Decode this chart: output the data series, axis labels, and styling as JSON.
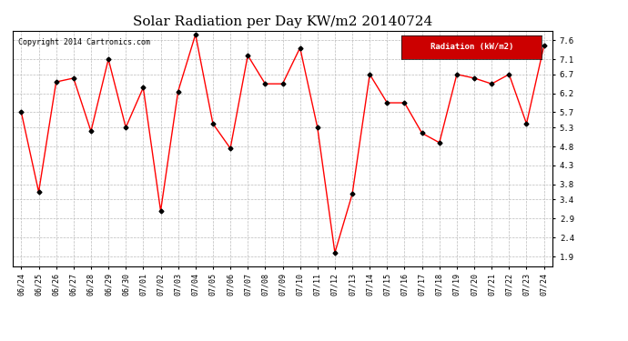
{
  "title": "Solar Radiation per Day KW/m2 20140724",
  "copyright": "Copyright 2014 Cartronics.com",
  "legend_label": "Radiation (kW/m2)",
  "dates": [
    "06/24",
    "06/25",
    "06/26",
    "06/27",
    "06/28",
    "06/29",
    "06/30",
    "07/01",
    "07/02",
    "07/03",
    "07/04",
    "07/05",
    "07/06",
    "07/07",
    "07/08",
    "07/09",
    "07/10",
    "07/11",
    "07/12",
    "07/13",
    "07/14",
    "07/15",
    "07/16",
    "07/17",
    "07/18",
    "07/19",
    "07/20",
    "07/21",
    "07/22",
    "07/23",
    "07/24"
  ],
  "values": [
    5.7,
    3.6,
    6.5,
    6.6,
    5.2,
    7.1,
    5.3,
    6.35,
    3.1,
    6.25,
    7.75,
    5.4,
    4.75,
    7.2,
    6.45,
    6.45,
    7.4,
    5.3,
    2.0,
    3.55,
    6.7,
    5.95,
    5.95,
    5.15,
    4.9,
    6.7,
    6.6,
    6.45,
    6.7,
    5.4,
    7.45
  ],
  "line_color": "red",
  "marker_color": "black",
  "background_color": "#ffffff",
  "grid_color": "#bbbbbb",
  "yticks": [
    1.9,
    2.4,
    2.9,
    3.4,
    3.8,
    4.3,
    4.8,
    5.3,
    5.7,
    6.2,
    6.7,
    7.1,
    7.6
  ],
  "ylim": [
    1.65,
    7.85
  ],
  "legend_bg": "#cc0000",
  "legend_text_color": "#ffffff"
}
